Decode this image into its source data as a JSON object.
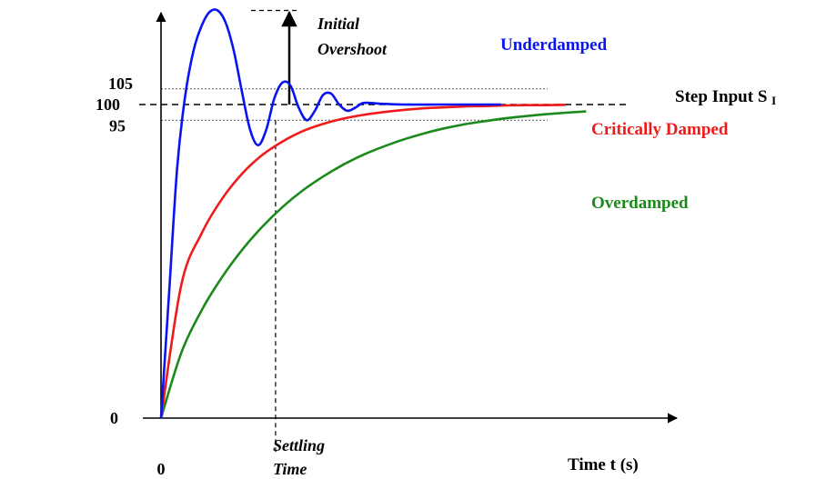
{
  "chart_data": {
    "type": "line",
    "title": "",
    "xlabel": "Time t (s)",
    "ylabel": "",
    "xlim": [
      0,
      10
    ],
    "ylim": [
      0,
      130
    ],
    "y_ticks": [
      {
        "value": 0,
        "label": "0"
      },
      {
        "value": 95,
        "label": "95"
      },
      {
        "value": 100,
        "label": "100"
      },
      {
        "value": 105,
        "label": "105"
      }
    ],
    "x_ticks": [
      {
        "value": 0,
        "label": "0"
      }
    ],
    "reference_lines": {
      "step_input": {
        "value": 100,
        "label": "Step Input S",
        "subscript": "I"
      },
      "upper_band": 105,
      "lower_band": 95
    },
    "annotations": {
      "overshoot": {
        "line1": "Initial",
        "line2": "Overshoot",
        "peak_value": 130
      },
      "settling": {
        "line1": "Settling",
        "line2": "Time",
        "x": 2.83
      }
    },
    "series": [
      {
        "name": "Underdamped",
        "color": "#0a14f0",
        "x": [
          0,
          0.2,
          0.4,
          0.6,
          0.8,
          1.0,
          1.2,
          1.4,
          1.6,
          1.8,
          2.0,
          2.2,
          2.4,
          2.6,
          2.8,
          3.0,
          3.2,
          3.4,
          3.6,
          3.8,
          4.0,
          4.2,
          4.4,
          4.6,
          4.8,
          5.0,
          5.4,
          6.0,
          7.0,
          8.0,
          8.4
        ],
        "values": [
          0,
          40,
          80,
          103,
          117,
          125,
          129.5,
          130,
          126,
          117,
          104,
          92,
          87,
          92,
          102,
          107,
          106,
          99,
          95,
          98,
          103,
          103.5,
          100,
          98,
          99,
          100.5,
          100.3,
          100,
          100,
          100,
          100
        ]
      },
      {
        "name": "Critically Damped",
        "color": "#ef1a1a",
        "x": [
          0,
          0.5,
          1,
          1.5,
          2,
          2.5,
          3,
          3.5,
          4,
          4.5,
          5,
          5.5,
          6,
          6.5,
          7,
          7.5,
          8,
          8.5,
          9,
          9.5,
          10
        ],
        "values": [
          0,
          42.5,
          58.8,
          69.8,
          77.9,
          83.9,
          88.2,
          91.5,
          93.8,
          95.5,
          96.7,
          97.6,
          98.3,
          98.8,
          99.1,
          99.4,
          99.5,
          99.7,
          99.8,
          99.8,
          99.9
        ]
      },
      {
        "name": "Overdamped",
        "color": "#1a8a1a",
        "x": [
          0,
          0.5,
          1,
          1.5,
          2,
          2.5,
          3,
          3.5,
          4,
          4.5,
          5,
          5.5,
          6,
          6.5,
          7,
          7.5,
          8,
          8.5,
          9,
          9.5,
          10,
          10.5
        ],
        "values": [
          0,
          20.8,
          34.3,
          44.8,
          53.6,
          61,
          67.3,
          72.6,
          77,
          80.8,
          84,
          86.6,
          88.9,
          90.8,
          92.4,
          93.7,
          94.7,
          95.6,
          96.3,
          96.9,
          97.4,
          97.8
        ]
      }
    ]
  }
}
